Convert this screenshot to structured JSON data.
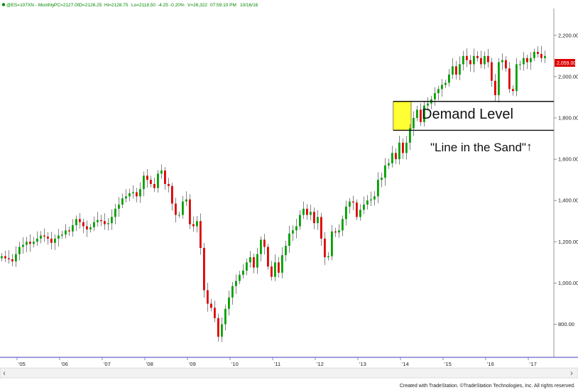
{
  "header": {
    "symbol": "@ES=107XN - Monthly",
    "pc": "PC=2127.00",
    "open": "O=2126.25",
    "high": "Hi=2128.75",
    "low": "Lo=2118.50",
    "chg": "-4.25",
    "chg_pct": "-0.20%",
    "volume": "V=26,322",
    "time": "07:59:10 PM",
    "date": "10/16/16"
  },
  "last_price": "2,059.00",
  "annotations": {
    "demand": "Demand Level",
    "sand": "\"Line in the Sand\"",
    "sand_arrow": "↑"
  },
  "footer": "Created with TradeStation. ©TradeStation Technologies, Inc. All rights reserved.",
  "scroll_left": "‹",
  "scroll_right": "›",
  "colors": {
    "up": "#00a000",
    "down": "#dd0000",
    "highlight": "#ffff33",
    "price_tag": "#dd0000"
  },
  "chart_data": {
    "type": "candlestick",
    "x_ticks": [
      "'05",
      "'06",
      "'07",
      "'08",
      "'09",
      "'10",
      "'11",
      "'12",
      "'13",
      "'14",
      "'15",
      "'16",
      "'17"
    ],
    "y_ticks": [
      "800.00",
      "1,000.00",
      "1,200.00",
      "1,400.00",
      "1,600.00",
      "1,800.00",
      "2,000.00",
      "2,200.00"
    ],
    "y_tick_values": [
      800,
      1000,
      1200,
      1400,
      1600,
      1800,
      2000,
      2200
    ],
    "x_range": [
      2004.6,
      2017.6
    ],
    "ylim": [
      640,
      2330
    ],
    "levels": [
      1880,
      1740
    ],
    "highlight_zone": {
      "x_start": 2013.83,
      "x_end": 2014.25,
      "low": 1740,
      "high": 1880
    },
    "closes": [
      1130,
      1120,
      1115,
      1105,
      1140,
      1175,
      1185,
      1200,
      1190,
      1200,
      1215,
      1230,
      1225,
      1215,
      1195,
      1215,
      1230,
      1235,
      1255,
      1250,
      1280,
      1310,
      1295,
      1275,
      1260,
      1270,
      1295,
      1305,
      1300,
      1285,
      1290,
      1320,
      1360,
      1380,
      1410,
      1420,
      1435,
      1440,
      1420,
      1455,
      1520,
      1500,
      1480,
      1460,
      1530,
      1545,
      1480,
      1470,
      1385,
      1330,
      1330,
      1395,
      1405,
      1285,
      1275,
      1300,
      1170,
      965,
      900,
      880,
      830,
      740,
      800,
      875,
      930,
      985,
      1010,
      1040,
      1060,
      1100,
      1125,
      1075,
      1140,
      1210,
      1175,
      1080,
      1030,
      1100,
      1050,
      1135,
      1180,
      1240,
      1255,
      1275,
      1330,
      1360,
      1330,
      1345,
      1290,
      1320,
      1215,
      1125,
      1130,
      1250,
      1245,
      1255,
      1310,
      1370,
      1395,
      1390,
      1320,
      1355,
      1380,
      1400,
      1405,
      1420,
      1500,
      1510,
      1570,
      1580,
      1630,
      1600,
      1680,
      1630,
      1680,
      1750,
      1800,
      1840,
      1780,
      1860,
      1870,
      1890,
      1920,
      1940,
      1960,
      1970,
      2010,
      2050,
      2010,
      2060,
      2100,
      2080,
      2060,
      2100,
      2090,
      2060,
      2100,
      2070,
      1980,
      1910,
      2070,
      2080,
      2040,
      1940,
      1930,
      2060,
      2060,
      2090,
      2070,
      2090,
      2120,
      2110,
      2090,
      2100
    ]
  }
}
